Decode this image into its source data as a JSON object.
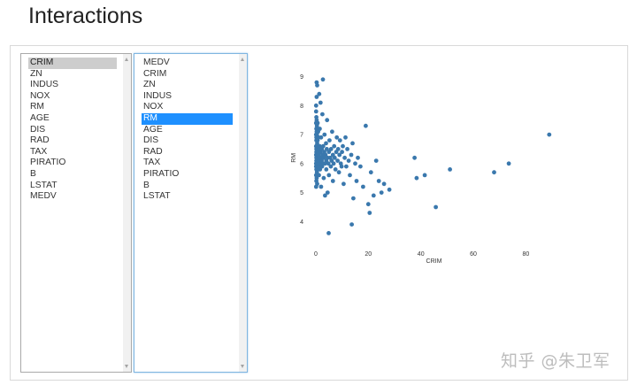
{
  "page": {
    "title": "Interactions"
  },
  "x_list": {
    "items": [
      "CRIM",
      "ZN",
      "INDUS",
      "NOX",
      "RM",
      "AGE",
      "DIS",
      "RAD",
      "TAX",
      "PIRATIO",
      "B",
      "LSTAT",
      "MEDV"
    ],
    "selected": "CRIM"
  },
  "y_list": {
    "items": [
      "MEDV",
      "CRIM",
      "ZN",
      "INDUS",
      "NOX",
      "RM",
      "AGE",
      "DIS",
      "RAD",
      "TAX",
      "PIRATIO",
      "B",
      "LSTAT"
    ],
    "selected": "RM"
  },
  "watermark": "知乎 @朱卫军",
  "colors": {
    "point": "#3a78ad",
    "selection": "#1e90ff",
    "selection_grey": "#cdcdcd"
  },
  "chart_data": {
    "type": "scatter",
    "xlabel": "CRIM",
    "ylabel": "RM",
    "xlim": [
      -1,
      92
    ],
    "ylim": [
      3.4,
      9.2
    ],
    "xticks": [
      0,
      20,
      40,
      60,
      80
    ],
    "yticks": [
      4,
      5,
      6,
      7,
      8,
      9
    ],
    "grid": false,
    "points": [
      [
        0.1,
        5.6
      ],
      [
        0.1,
        6.0
      ],
      [
        0.1,
        6.3
      ],
      [
        0.1,
        6.6
      ],
      [
        0.1,
        7.0
      ],
      [
        0.1,
        7.4
      ],
      [
        0.1,
        7.8
      ],
      [
        0.1,
        8.0
      ],
      [
        0.1,
        5.2
      ],
      [
        0.1,
        5.9
      ],
      [
        0.2,
        6.1
      ],
      [
        0.2,
        6.4
      ],
      [
        0.2,
        6.8
      ],
      [
        0.2,
        7.2
      ],
      [
        0.2,
        5.4
      ],
      [
        0.2,
        5.8
      ],
      [
        0.2,
        6.2
      ],
      [
        0.2,
        6.5
      ],
      [
        0.2,
        6.9
      ],
      [
        0.2,
        7.6
      ],
      [
        0.3,
        5.9
      ],
      [
        0.3,
        6.2
      ],
      [
        0.3,
        6.5
      ],
      [
        0.3,
        6.8
      ],
      [
        0.3,
        7.1
      ],
      [
        0.3,
        7.5
      ],
      [
        0.3,
        8.3
      ],
      [
        0.3,
        5.5
      ],
      [
        0.4,
        6.0
      ],
      [
        0.4,
        6.3
      ],
      [
        0.4,
        6.6
      ],
      [
        0.4,
        7.0
      ],
      [
        0.4,
        7.3
      ],
      [
        0.4,
        5.7
      ],
      [
        0.5,
        6.1
      ],
      [
        0.5,
        6.4
      ],
      [
        0.5,
        6.7
      ],
      [
        0.5,
        7.2
      ],
      [
        0.5,
        8.7
      ],
      [
        0.5,
        5.3
      ],
      [
        0.6,
        5.8
      ],
      [
        0.6,
        6.2
      ],
      [
        0.6,
        6.5
      ],
      [
        0.6,
        6.9
      ],
      [
        0.7,
        6.0
      ],
      [
        0.7,
        6.3
      ],
      [
        0.7,
        6.8
      ],
      [
        0.7,
        7.4
      ],
      [
        0.8,
        5.9
      ],
      [
        0.8,
        6.1
      ],
      [
        0.8,
        6.6
      ],
      [
        0.9,
        6.2
      ],
      [
        0.9,
        6.4
      ],
      [
        0.9,
        7.1
      ],
      [
        1.0,
        5.9
      ],
      [
        1.0,
        6.3
      ],
      [
        1.0,
        6.9
      ],
      [
        1.2,
        6.0
      ],
      [
        1.2,
        6.5
      ],
      [
        1.2,
        5.6
      ],
      [
        1.3,
        6.2
      ],
      [
        1.3,
        8.4
      ],
      [
        1.5,
        6.1
      ],
      [
        1.5,
        6.6
      ],
      [
        1.5,
        7.2
      ],
      [
        1.6,
        5.8
      ],
      [
        1.7,
        6.4
      ],
      [
        1.8,
        6.0
      ],
      [
        1.8,
        8.1
      ],
      [
        2.0,
        6.2
      ],
      [
        2.0,
        6.9
      ],
      [
        2.0,
        5.2
      ],
      [
        2.2,
        6.1
      ],
      [
        2.3,
        6.5
      ],
      [
        2.4,
        5.9
      ],
      [
        2.5,
        6.3
      ],
      [
        2.5,
        7.7
      ],
      [
        2.7,
        6.0
      ],
      [
        2.8,
        6.6
      ],
      [
        3.0,
        6.2
      ],
      [
        3.0,
        5.5
      ],
      [
        3.2,
        6.4
      ],
      [
        3.3,
        7.0
      ],
      [
        3.5,
        6.0
      ],
      [
        3.5,
        4.9
      ],
      [
        3.7,
        6.3
      ],
      [
        3.9,
        6.7
      ],
      [
        4.0,
        6.1
      ],
      [
        4.0,
        5.8
      ],
      [
        4.2,
        6.5
      ],
      [
        4.3,
        7.5
      ],
      [
        4.5,
        6.2
      ],
      [
        4.5,
        5.0
      ],
      [
        4.8,
        6.0
      ],
      [
        5.0,
        6.4
      ],
      [
        5.0,
        5.6
      ],
      [
        5.2,
        6.8
      ],
      [
        5.5,
        6.2
      ],
      [
        5.7,
        5.9
      ],
      [
        5.8,
        6.5
      ],
      [
        6.0,
        6.1
      ],
      [
        6.2,
        7.1
      ],
      [
        6.5,
        6.3
      ],
      [
        6.5,
        5.4
      ],
      [
        6.8,
        6.0
      ],
      [
        7.0,
        6.6
      ],
      [
        7.2,
        6.2
      ],
      [
        7.5,
        5.8
      ],
      [
        7.8,
        6.4
      ],
      [
        8.0,
        6.9
      ],
      [
        8.3,
        6.1
      ],
      [
        8.5,
        6.5
      ],
      [
        8.8,
        5.7
      ],
      [
        9.0,
        6.3
      ],
      [
        9.2,
        6.8
      ],
      [
        9.5,
        6.0
      ],
      [
        9.8,
        5.9
      ],
      [
        10.0,
        6.4
      ],
      [
        10.3,
        6.6
      ],
      [
        10.6,
        5.3
      ],
      [
        11.0,
        6.2
      ],
      [
        11.3,
        6.9
      ],
      [
        11.6,
        5.9
      ],
      [
        12.0,
        6.5
      ],
      [
        12.5,
        6.1
      ],
      [
        13.0,
        5.6
      ],
      [
        13.5,
        6.3
      ],
      [
        14.0,
        6.7
      ],
      [
        14.3,
        4.8
      ],
      [
        15.0,
        6.0
      ],
      [
        15.5,
        5.4
      ],
      [
        16.0,
        6.2
      ],
      [
        17.0,
        5.9
      ],
      [
        18.0,
        5.2
      ],
      [
        19.0,
        7.3
      ],
      [
        20.0,
        4.6
      ],
      [
        20.5,
        4.3
      ],
      [
        21.0,
        5.7
      ],
      [
        22.0,
        4.9
      ],
      [
        23.0,
        6.1
      ],
      [
        24.0,
        5.4
      ],
      [
        25.0,
        5.0
      ],
      [
        26.0,
        5.3
      ],
      [
        28.0,
        5.1
      ],
      [
        37.6,
        6.2
      ],
      [
        38.4,
        5.5
      ],
      [
        41.5,
        5.6
      ],
      [
        45.7,
        4.5
      ],
      [
        51.1,
        5.8
      ],
      [
        67.9,
        5.7
      ],
      [
        73.5,
        6.0
      ],
      [
        88.9,
        7.0
      ],
      [
        4.9,
        3.6
      ],
      [
        13.7,
        3.9
      ],
      [
        0.3,
        8.8
      ],
      [
        2.7,
        8.9
      ]
    ]
  }
}
